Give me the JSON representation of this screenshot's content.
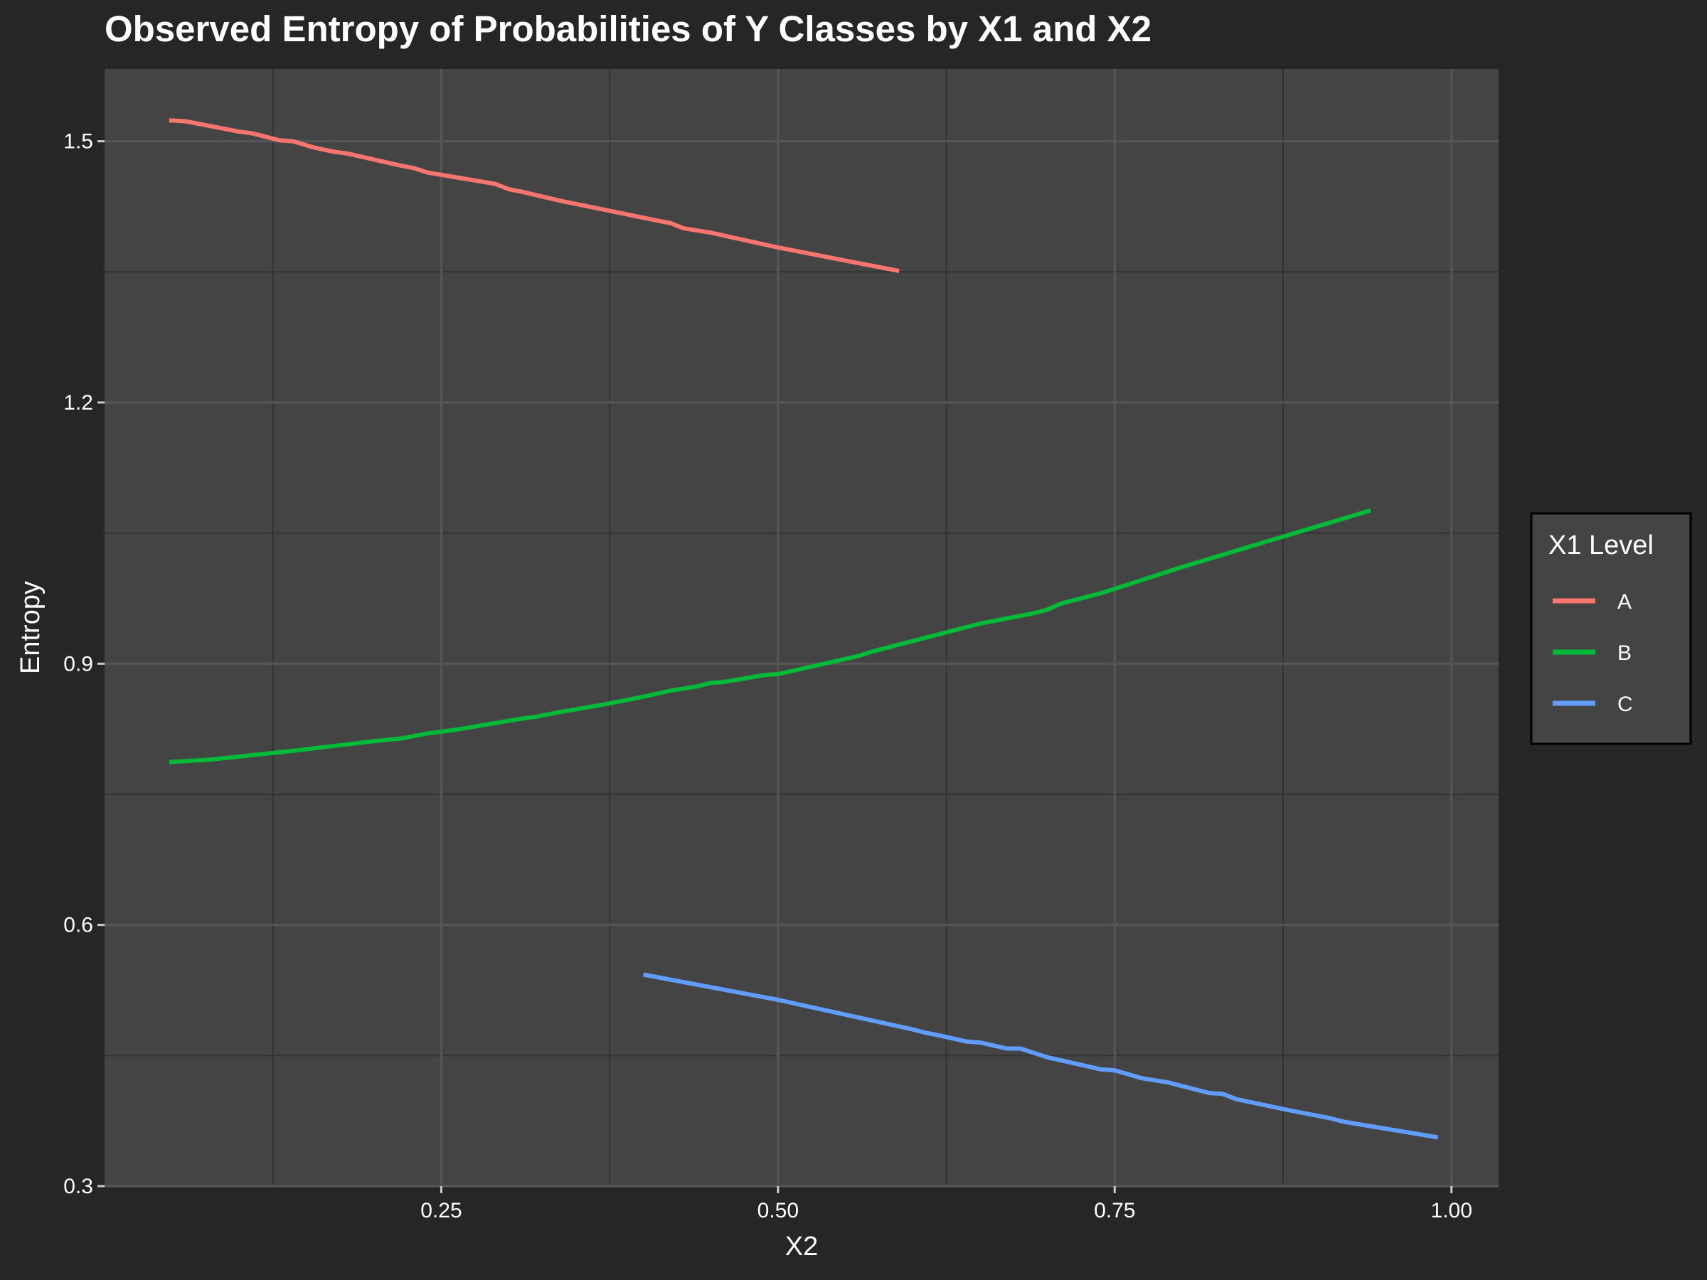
{
  "chart_data": {
    "type": "line",
    "title": "Observed Entropy of Probabilities of Y Classes by X1 and X2",
    "xlabel": "X2",
    "ylabel": "Entropy",
    "xlim": [
      0.0,
      1.035
    ],
    "ylim": [
      0.3,
      1.583
    ],
    "x_ticks": [
      0.25,
      0.5,
      0.75,
      1.0
    ],
    "x_tick_labels": [
      "0.25",
      "0.50",
      "0.75",
      "1.00"
    ],
    "y_ticks": [
      0.3,
      0.6,
      0.9,
      1.2,
      1.5
    ],
    "y_tick_labels": [
      "0.3",
      "0.6",
      "0.9",
      "1.2",
      "1.5"
    ],
    "grid": true,
    "legend": {
      "title": "X1 Level",
      "position": "right"
    },
    "series": [
      {
        "name": "A",
        "color": "#F8766D",
        "x": [
          0.048,
          0.06,
          0.1,
          0.11,
          0.13,
          0.14,
          0.155,
          0.17,
          0.18,
          0.22,
          0.23,
          0.24,
          0.29,
          0.3,
          0.31,
          0.34,
          0.35,
          0.41,
          0.42,
          0.43,
          0.45,
          0.5,
          0.55,
          0.59
        ],
        "y": [
          1.524,
          1.523,
          1.511,
          1.509,
          1.501,
          1.5,
          1.493,
          1.488,
          1.486,
          1.472,
          1.469,
          1.464,
          1.451,
          1.445,
          1.442,
          1.431,
          1.428,
          1.409,
          1.406,
          1.4,
          1.395,
          1.378,
          1.363,
          1.351
        ]
      },
      {
        "name": "B",
        "color": "#00BA38",
        "x": [
          0.048,
          0.08,
          0.14,
          0.2,
          0.22,
          0.24,
          0.26,
          0.31,
          0.32,
          0.34,
          0.37,
          0.4,
          0.42,
          0.44,
          0.45,
          0.46,
          0.49,
          0.5,
          0.54,
          0.56,
          0.57,
          0.6,
          0.64,
          0.65,
          0.69,
          0.7,
          0.71,
          0.74,
          0.76,
          0.8,
          0.86,
          0.94
        ],
        "y": [
          0.787,
          0.79,
          0.8,
          0.811,
          0.814,
          0.82,
          0.824,
          0.837,
          0.839,
          0.845,
          0.853,
          0.862,
          0.869,
          0.874,
          0.878,
          0.879,
          0.887,
          0.888,
          0.902,
          0.909,
          0.914,
          0.926,
          0.942,
          0.946,
          0.958,
          0.962,
          0.969,
          0.981,
          0.991,
          1.011,
          1.039,
          1.076
        ]
      },
      {
        "name": "C",
        "color": "#619CFF",
        "x": [
          0.4,
          0.5,
          0.55,
          0.6,
          0.61,
          0.62,
          0.64,
          0.65,
          0.67,
          0.68,
          0.7,
          0.74,
          0.75,
          0.77,
          0.79,
          0.82,
          0.83,
          0.84,
          0.88,
          0.91,
          0.92,
          0.99
        ],
        "y": [
          0.543,
          0.514,
          0.497,
          0.48,
          0.476,
          0.473,
          0.466,
          0.465,
          0.458,
          0.458,
          0.448,
          0.434,
          0.433,
          0.424,
          0.419,
          0.407,
          0.406,
          0.4,
          0.387,
          0.378,
          0.374,
          0.356
        ]
      }
    ]
  }
}
